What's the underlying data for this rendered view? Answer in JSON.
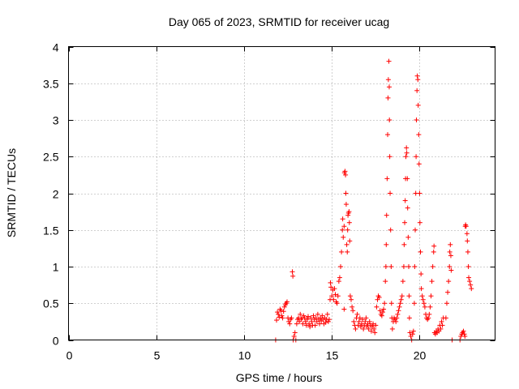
{
  "colors": {
    "series": "#ff0000",
    "grid": "#a0a0a0",
    "axis": "#000000"
  },
  "chart_data": {
    "type": "scatter",
    "title": "Day 065 of 2023, SRMTID for receiver ucag",
    "xlabel": "GPS time / hours",
    "ylabel": "SRMTID / TECUs",
    "xlim": [
      0,
      24.3
    ],
    "ylim": [
      0,
      4
    ],
    "xticks": [
      0,
      5,
      10,
      15,
      20
    ],
    "yticks": [
      0,
      0.5,
      1,
      1.5,
      2,
      2.5,
      3,
      3.5,
      4
    ],
    "grid": true,
    "series": [
      {
        "name": "SRMTID",
        "marker": "+",
        "points": [
          [
            11.8,
            0.0
          ],
          [
            11.85,
            0.27
          ],
          [
            11.9,
            0.38
          ],
          [
            11.95,
            0.35
          ],
          [
            12.0,
            0.31
          ],
          [
            12.05,
            0.42
          ],
          [
            12.1,
            0.4
          ],
          [
            12.15,
            0.33
          ],
          [
            12.2,
            0.3
          ],
          [
            12.25,
            0.39
          ],
          [
            12.3,
            0.45
          ],
          [
            12.35,
            0.48
          ],
          [
            12.4,
            0.5
          ],
          [
            12.45,
            0.52
          ],
          [
            12.5,
            0.3
          ],
          [
            12.55,
            0.25
          ],
          [
            12.6,
            0.22
          ],
          [
            12.65,
            0.28
          ],
          [
            12.7,
            0.3
          ],
          [
            12.75,
            0.93
          ],
          [
            12.78,
            0.87
          ],
          [
            12.8,
            0.0
          ],
          [
            12.85,
            0.05
          ],
          [
            12.9,
            0.1
          ],
          [
            12.95,
            0.0
          ],
          [
            13.0,
            0.22
          ],
          [
            13.05,
            0.28
          ],
          [
            13.1,
            0.3
          ],
          [
            13.15,
            0.25
          ],
          [
            13.2,
            0.35
          ],
          [
            13.25,
            0.28
          ],
          [
            13.3,
            0.3
          ],
          [
            13.35,
            0.22
          ],
          [
            13.4,
            0.33
          ],
          [
            13.45,
            0.3
          ],
          [
            13.5,
            0.25
          ],
          [
            13.55,
            0.2
          ],
          [
            13.6,
            0.28
          ],
          [
            13.65,
            0.32
          ],
          [
            13.7,
            0.22
          ],
          [
            13.75,
            0.18
          ],
          [
            13.8,
            0.3
          ],
          [
            13.85,
            0.25
          ],
          [
            13.9,
            0.2
          ],
          [
            13.95,
            0.33
          ],
          [
            14.0,
            0.28
          ],
          [
            14.05,
            0.2
          ],
          [
            14.1,
            0.3
          ],
          [
            14.15,
            0.25
          ],
          [
            14.2,
            0.35
          ],
          [
            14.25,
            0.28
          ],
          [
            14.3,
            0.22
          ],
          [
            14.35,
            0.3
          ],
          [
            14.4,
            0.26
          ],
          [
            14.45,
            0.33
          ],
          [
            14.5,
            0.28
          ],
          [
            14.55,
            0.22
          ],
          [
            14.6,
            0.3
          ],
          [
            14.65,
            0.24
          ],
          [
            14.7,
            0.28
          ],
          [
            14.75,
            0.35
          ],
          [
            14.8,
            0.25
          ],
          [
            14.85,
            0.28
          ],
          [
            14.9,
            0.55
          ],
          [
            14.92,
            0.78
          ],
          [
            14.95,
            0.72
          ],
          [
            15.0,
            0.6
          ],
          [
            15.05,
            0.68
          ],
          [
            15.1,
            0.55
          ],
          [
            15.15,
            0.7
          ],
          [
            15.2,
            0.62
          ],
          [
            15.25,
            0.52
          ],
          [
            15.3,
            0.5
          ],
          [
            15.35,
            0.6
          ],
          [
            15.4,
            0.8
          ],
          [
            15.45,
            0.85
          ],
          [
            15.5,
            1.0
          ],
          [
            15.55,
            1.2
          ],
          [
            15.6,
            1.5
          ],
          [
            15.62,
            1.65
          ],
          [
            15.65,
            1.4
          ],
          [
            15.7,
            1.55
          ],
          [
            15.72,
            2.28
          ],
          [
            15.75,
            2.3
          ],
          [
            15.78,
            2.25
          ],
          [
            15.8,
            2.0
          ],
          [
            15.82,
            1.85
          ],
          [
            15.85,
            1.3
          ],
          [
            15.88,
            1.2
          ],
          [
            15.9,
            1.5
          ],
          [
            15.92,
            1.7
          ],
          [
            15.95,
            1.73
          ],
          [
            15.98,
            1.75
          ],
          [
            16.0,
            1.6
          ],
          [
            16.02,
            1.35
          ],
          [
            16.05,
            0.6
          ],
          [
            16.1,
            0.55
          ],
          [
            16.15,
            0.45
          ],
          [
            16.2,
            0.4
          ],
          [
            15.7,
            0.42
          ],
          [
            16.25,
            0.25
          ],
          [
            16.3,
            0.2
          ],
          [
            16.35,
            0.15
          ],
          [
            16.4,
            0.3
          ],
          [
            16.45,
            0.35
          ],
          [
            16.5,
            0.2
          ],
          [
            16.55,
            0.25
          ],
          [
            16.6,
            0.3
          ],
          [
            16.65,
            0.18
          ],
          [
            16.7,
            0.22
          ],
          [
            16.75,
            0.28
          ],
          [
            16.8,
            0.15
          ],
          [
            16.85,
            0.2
          ],
          [
            16.9,
            0.25
          ],
          [
            16.95,
            0.3
          ],
          [
            17.0,
            0.18
          ],
          [
            17.05,
            0.22
          ],
          [
            17.1,
            0.15
          ],
          [
            17.15,
            0.25
          ],
          [
            17.2,
            0.2
          ],
          [
            17.25,
            0.12
          ],
          [
            17.3,
            0.18
          ],
          [
            17.35,
            0.22
          ],
          [
            17.4,
            0.15
          ],
          [
            17.45,
            0.1
          ],
          [
            17.5,
            0.2
          ],
          [
            17.55,
            0.45
          ],
          [
            17.6,
            0.55
          ],
          [
            17.65,
            0.6
          ],
          [
            17.7,
            0.58
          ],
          [
            17.75,
            0.4
          ],
          [
            17.8,
            0.35
          ],
          [
            17.85,
            0.33
          ],
          [
            17.9,
            0.38
          ],
          [
            17.95,
            0.42
          ],
          [
            18.0,
            0.5
          ],
          [
            18.05,
            0.8
          ],
          [
            18.08,
            1.0
          ],
          [
            18.1,
            1.3
          ],
          [
            18.12,
            1.7
          ],
          [
            18.15,
            2.2
          ],
          [
            18.18,
            2.8
          ],
          [
            18.2,
            3.3
          ],
          [
            18.22,
            3.55
          ],
          [
            18.25,
            3.8
          ],
          [
            18.27,
            3.45
          ],
          [
            18.28,
            3.0
          ],
          [
            18.3,
            2.5
          ],
          [
            18.32,
            2.0
          ],
          [
            18.35,
            1.5
          ],
          [
            18.38,
            1.0
          ],
          [
            18.4,
            0.5
          ],
          [
            18.42,
            0.3
          ],
          [
            18.45,
            0.15
          ],
          [
            18.5,
            0.25
          ],
          [
            18.55,
            0.3
          ],
          [
            18.6,
            0.28
          ],
          [
            18.65,
            0.25
          ],
          [
            18.7,
            0.3
          ],
          [
            18.75,
            0.35
          ],
          [
            18.8,
            0.4
          ],
          [
            18.85,
            0.45
          ],
          [
            18.9,
            0.5
          ],
          [
            18.95,
            0.55
          ],
          [
            19.0,
            0.6
          ],
          [
            19.05,
            0.8
          ],
          [
            19.1,
            1.0
          ],
          [
            19.12,
            1.3
          ],
          [
            19.15,
            1.6
          ],
          [
            19.18,
            1.9
          ],
          [
            19.2,
            2.2
          ],
          [
            19.22,
            2.5
          ],
          [
            19.25,
            2.62
          ],
          [
            19.27,
            2.55
          ],
          [
            19.3,
            2.2
          ],
          [
            19.32,
            1.8
          ],
          [
            19.35,
            1.4
          ],
          [
            19.38,
            1.0
          ],
          [
            19.4,
            0.6
          ],
          [
            19.42,
            0.3
          ],
          [
            19.45,
            0.1
          ],
          [
            19.5,
            0.05
          ],
          [
            19.55,
            0.0
          ],
          [
            19.6,
            0.08
          ],
          [
            19.65,
            0.12
          ],
          [
            19.7,
            0.5
          ],
          [
            19.72,
            1.0
          ],
          [
            19.75,
            1.5
          ],
          [
            19.78,
            2.0
          ],
          [
            19.8,
            2.5
          ],
          [
            19.82,
            3.0
          ],
          [
            19.85,
            3.4
          ],
          [
            19.87,
            3.6
          ],
          [
            19.9,
            3.55
          ],
          [
            19.92,
            3.2
          ],
          [
            19.95,
            2.8
          ],
          [
            19.97,
            2.4
          ],
          [
            20.0,
            2.0
          ],
          [
            20.02,
            1.6
          ],
          [
            20.05,
            1.2
          ],
          [
            20.08,
            0.9
          ],
          [
            20.1,
            0.7
          ],
          [
            20.15,
            0.6
          ],
          [
            20.2,
            0.55
          ],
          [
            20.25,
            0.5
          ],
          [
            20.3,
            0.45
          ],
          [
            20.35,
            0.35
          ],
          [
            20.4,
            0.3
          ],
          [
            20.45,
            0.28
          ],
          [
            20.5,
            0.3
          ],
          [
            20.55,
            0.35
          ],
          [
            20.6,
            0.45
          ],
          [
            20.65,
            0.6
          ],
          [
            20.7,
            0.8
          ],
          [
            20.75,
            1.0
          ],
          [
            20.8,
            1.2
          ],
          [
            20.82,
            1.28
          ],
          [
            20.85,
            0.1
          ],
          [
            20.9,
            0.08
          ],
          [
            20.95,
            0.12
          ],
          [
            21.0,
            0.1
          ],
          [
            21.05,
            0.15
          ],
          [
            21.1,
            0.12
          ],
          [
            21.15,
            0.2
          ],
          [
            21.2,
            0.15
          ],
          [
            21.25,
            0.25
          ],
          [
            21.3,
            0.2
          ],
          [
            21.35,
            0.3
          ],
          [
            21.5,
            0.3
          ],
          [
            21.55,
            0.5
          ],
          [
            21.6,
            0.65
          ],
          [
            21.65,
            0.8
          ],
          [
            21.7,
            1.0
          ],
          [
            21.72,
            1.2
          ],
          [
            21.75,
            1.3
          ],
          [
            21.78,
            1.15
          ],
          [
            21.8,
            0.95
          ],
          [
            21.85,
            0.0
          ],
          [
            22.3,
            0.0
          ],
          [
            22.35,
            0.05
          ],
          [
            22.4,
            0.08
          ],
          [
            22.45,
            0.1
          ],
          [
            22.5,
            0.12
          ],
          [
            22.55,
            0.08
          ],
          [
            22.58,
            0.05
          ],
          [
            22.6,
            1.55
          ],
          [
            22.62,
            1.57
          ],
          [
            22.65,
            1.55
          ],
          [
            22.7,
            1.45
          ],
          [
            22.72,
            1.35
          ],
          [
            22.75,
            1.2
          ],
          [
            22.78,
            1.0
          ],
          [
            22.8,
            0.85
          ],
          [
            22.85,
            0.8
          ],
          [
            22.9,
            0.75
          ],
          [
            22.95,
            0.7
          ]
        ]
      }
    ]
  }
}
